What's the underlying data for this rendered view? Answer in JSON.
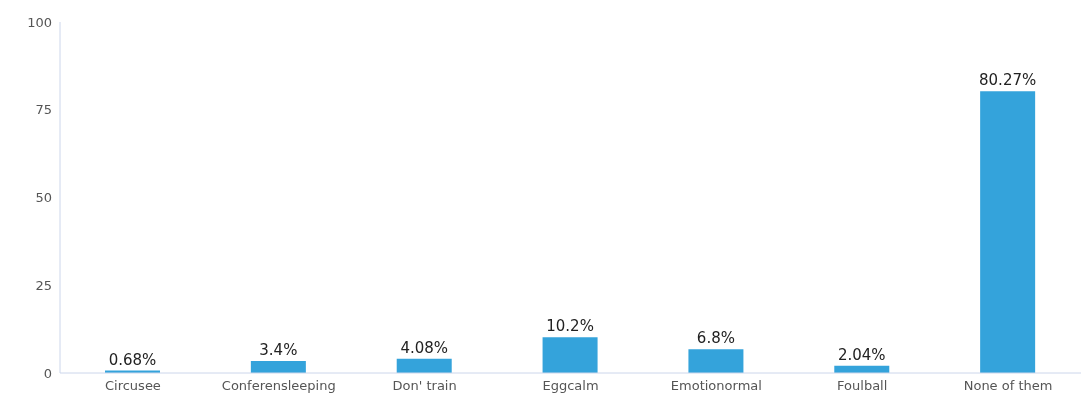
{
  "chart_data": {
    "type": "bar",
    "categories": [
      "Circusee",
      "Conferensleeping",
      "Don' train",
      "Eggcalm",
      "Emotionormal",
      "Foulball",
      "None of them"
    ],
    "values": [
      0.68,
      3.4,
      4.08,
      10.2,
      6.8,
      2.04,
      80.27
    ],
    "value_labels": [
      "0.68%",
      "3.4%",
      "4.08%",
      "10.2%",
      "6.8%",
      "2.04%",
      "80.27%"
    ],
    "color": "#34a3db",
    "ylim": [
      0,
      100
    ],
    "yticks": [
      0,
      25,
      50,
      75,
      100
    ],
    "grid": false
  }
}
